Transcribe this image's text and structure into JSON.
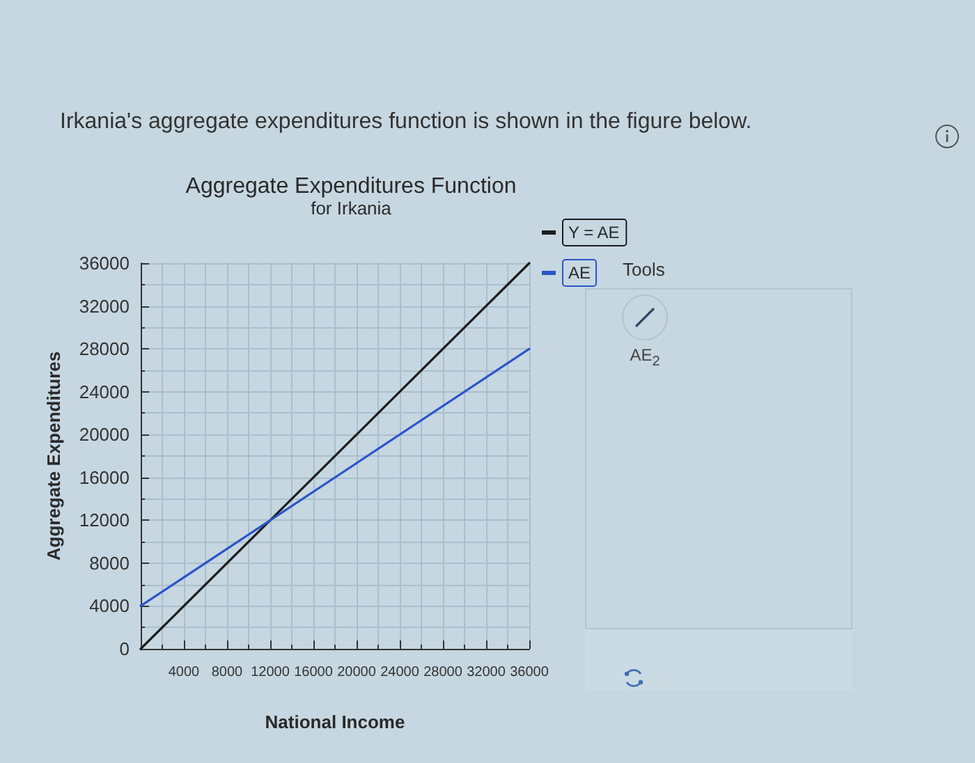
{
  "chart_data": {
    "type": "line",
    "title": "Aggregate Expenditures Function",
    "subtitle": "for Irkania",
    "xlabel": "National Income",
    "ylabel": "Aggregate Expenditures",
    "annotations": [
      "Irkania's aggregate expenditures function is shown in the figure below.",
      "Tools",
      "AE$_{2}$"
    ],
    "x": [
      0,
      36000
    ],
    "series": [
      {
        "name": "Y = AE",
        "color": "#1c1c1c",
        "values": [
          0,
          36000
        ]
      },
      {
        "name": "AE",
        "color": "#2a55c9",
        "values": [
          4000,
          28000
        ]
      }
    ],
    "xlim": [
      0,
      36000
    ],
    "ylim": [
      0,
      36000
    ],
    "xticks": [
      {
        "value": 0,
        "label": null
      },
      4000,
      8000,
      12000,
      16000,
      20000,
      24000,
      28000,
      32000,
      36000
    ],
    "yticks": [
      0,
      4000,
      8000,
      12000,
      16000,
      20000,
      24000,
      28000,
      32000,
      36000
    ],
    "grid": true,
    "legend": "top right",
    "marker": "none",
    "line_style": "solid"
  }
}
